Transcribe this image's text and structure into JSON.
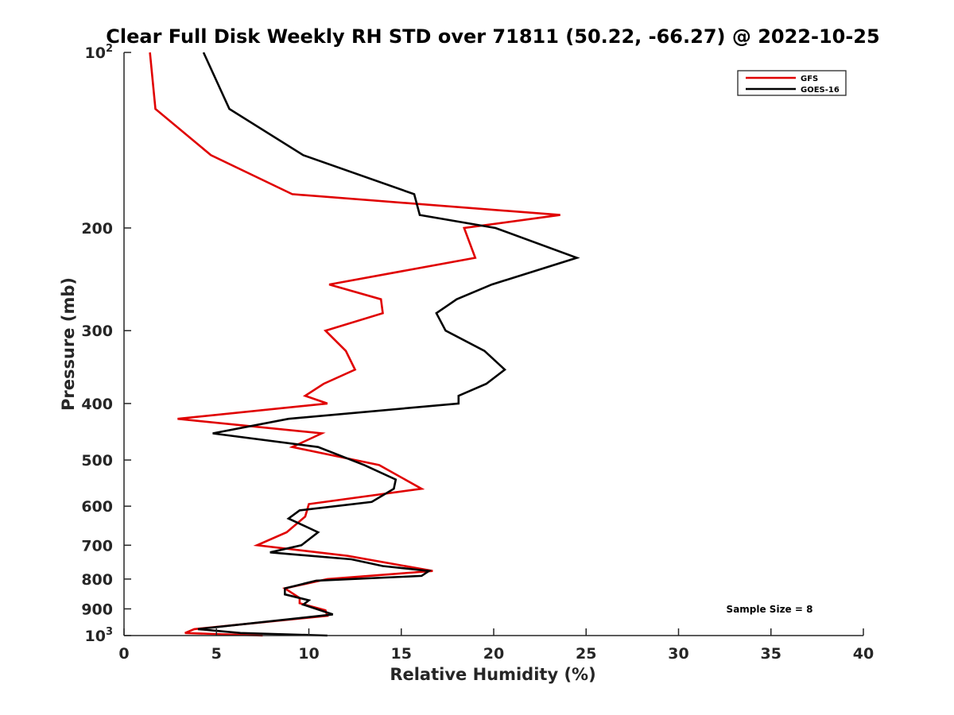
{
  "chart_data": {
    "type": "line",
    "title": "Clear Full Disk Weekly RH STD over 71811 (50.22, -66.27) @ 2022-10-25",
    "xlabel": "Relative Humidity (%)",
    "ylabel": "Pressure (mb)",
    "xlim": [
      0,
      40
    ],
    "ylim": [
      100,
      1000
    ],
    "y_scale": "log",
    "y_reversed": true,
    "grid": false,
    "legend_position": "top-right",
    "x_ticks": [
      {
        "value": 0,
        "label": "0"
      },
      {
        "value": 5,
        "label": "5"
      },
      {
        "value": 10,
        "label": "10"
      },
      {
        "value": 15,
        "label": "15"
      },
      {
        "value": 20,
        "label": "20"
      },
      {
        "value": 25,
        "label": "25"
      },
      {
        "value": 30,
        "label": "30"
      },
      {
        "value": 35,
        "label": "35"
      },
      {
        "value": 40,
        "label": "40"
      }
    ],
    "y_ticks": [
      {
        "value": 100,
        "label": "10",
        "sup": "2"
      },
      {
        "value": 200,
        "label": "200",
        "sup": ""
      },
      {
        "value": 300,
        "label": "300",
        "sup": ""
      },
      {
        "value": 400,
        "label": "400",
        "sup": ""
      },
      {
        "value": 500,
        "label": "500",
        "sup": ""
      },
      {
        "value": 600,
        "label": "600",
        "sup": ""
      },
      {
        "value": 700,
        "label": "700",
        "sup": ""
      },
      {
        "value": 800,
        "label": "800",
        "sup": ""
      },
      {
        "value": 900,
        "label": "900",
        "sup": ""
      },
      {
        "value": 1000,
        "label": "10",
        "sup": "3"
      }
    ],
    "series": [
      {
        "name": "GFS",
        "color": "#e00000",
        "points": [
          [
            1.4,
            100
          ],
          [
            1.7,
            125
          ],
          [
            4.7,
            150
          ],
          [
            9.1,
            175
          ],
          [
            23.6,
            190
          ],
          [
            18.4,
            200
          ],
          [
            19.0,
            225
          ],
          [
            11.1,
            250
          ],
          [
            13.9,
            265
          ],
          [
            14.0,
            280
          ],
          [
            10.9,
            300
          ],
          [
            12.0,
            325
          ],
          [
            12.5,
            350
          ],
          [
            10.8,
            370
          ],
          [
            9.8,
            388
          ],
          [
            11.0,
            400
          ],
          [
            2.9,
            425
          ],
          [
            10.7,
            450
          ],
          [
            9.1,
            475
          ],
          [
            13.8,
            510
          ],
          [
            16.1,
            560
          ],
          [
            10.0,
            595
          ],
          [
            9.8,
            625
          ],
          [
            8.8,
            665
          ],
          [
            7.2,
            700
          ],
          [
            12.1,
            730
          ],
          [
            16.7,
            775
          ],
          [
            11.0,
            800
          ],
          [
            8.7,
            830
          ],
          [
            9.5,
            862
          ],
          [
            9.5,
            880
          ],
          [
            10.9,
            905
          ],
          [
            11.0,
            925
          ],
          [
            3.8,
            975
          ],
          [
            3.3,
            990
          ],
          [
            7.5,
            1000
          ]
        ]
      },
      {
        "name": "GOES-16",
        "color": "#000000",
        "points": [
          [
            4.3,
            100
          ],
          [
            5.7,
            125
          ],
          [
            9.7,
            150
          ],
          [
            15.7,
            175
          ],
          [
            16.0,
            190
          ],
          [
            20.1,
            200
          ],
          [
            24.5,
            225
          ],
          [
            19.9,
            250
          ],
          [
            18.0,
            265
          ],
          [
            16.9,
            280
          ],
          [
            17.4,
            300
          ],
          [
            19.5,
            325
          ],
          [
            20.6,
            350
          ],
          [
            19.6,
            370
          ],
          [
            18.1,
            388
          ],
          [
            18.1,
            400
          ],
          [
            8.9,
            425
          ],
          [
            4.8,
            450
          ],
          [
            10.5,
            475
          ],
          [
            13.0,
            510
          ],
          [
            14.7,
            540
          ],
          [
            14.6,
            560
          ],
          [
            13.4,
            590
          ],
          [
            9.5,
            610
          ],
          [
            8.9,
            630
          ],
          [
            10.5,
            665
          ],
          [
            9.6,
            700
          ],
          [
            7.9,
            720
          ],
          [
            12.3,
            740
          ],
          [
            14.0,
            760
          ],
          [
            16.5,
            775
          ],
          [
            16.1,
            790
          ],
          [
            10.4,
            805
          ],
          [
            8.7,
            830
          ],
          [
            8.7,
            850
          ],
          [
            10.0,
            870
          ],
          [
            9.7,
            885
          ],
          [
            11.3,
            920
          ],
          [
            4.0,
            975
          ],
          [
            6.3,
            990
          ],
          [
            11.0,
            1000
          ]
        ]
      }
    ],
    "annotation": "Sample Size = 8"
  }
}
